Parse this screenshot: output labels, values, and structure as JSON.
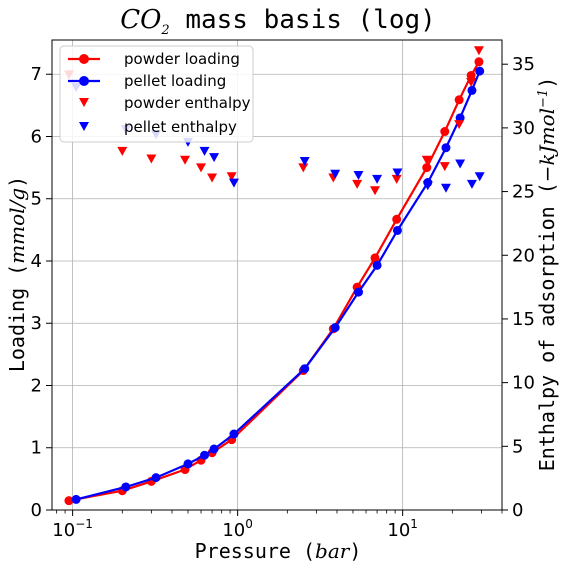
{
  "chart_data": {
    "type": "line",
    "title": "CO2 mass basis (log)",
    "title_parts": {
      "main": "CO",
      "sub": "2",
      "rest": " mass basis (log)"
    },
    "xlabel": "Pressure (bar)",
    "xlabel_parts": {
      "prefix": "Pressure (",
      "math": "bar",
      "suffix": ")"
    },
    "ylabel": "Loading (mmol/g)",
    "ylabel_parts": {
      "prefix": "Loading (",
      "math": "mmol/g",
      "suffix": ")"
    },
    "y2label": "Enthalpy of adsorption (−kJ/mol⁻¹)",
    "y2label_parts": {
      "prefix": "Enthalpy of adsorption (",
      "math": "−kJmol",
      "sup": "−1",
      "suffix": ")"
    },
    "xscale": "log",
    "xlim": [
      0.075,
      40
    ],
    "ylim": [
      0,
      7.55
    ],
    "y2lim": [
      0,
      36.9
    ],
    "grid": true,
    "legend_position": "top-left",
    "x_ticks": [
      {
        "value": 0.1,
        "base": "10",
        "exp": "−1"
      },
      {
        "value": 1,
        "base": "10",
        "exp": "0"
      },
      {
        "value": 10,
        "base": "10",
        "exp": "1"
      }
    ],
    "y_ticks": [
      0,
      1,
      2,
      3,
      4,
      5,
      6,
      7
    ],
    "y2_ticks": [
      0,
      5,
      10,
      15,
      20,
      25,
      30,
      35
    ],
    "series": [
      {
        "name": "powder loading",
        "kind": "line",
        "axis": "left",
        "color": "#ff0000",
        "x": [
          0.095,
          0.2,
          0.3,
          0.48,
          0.6,
          0.7,
          0.92,
          2.5,
          3.8,
          5.3,
          6.8,
          9.2,
          14,
          18,
          22,
          26,
          29
        ],
        "y": [
          0.15,
          0.31,
          0.46,
          0.65,
          0.8,
          0.92,
          1.13,
          2.24,
          2.91,
          3.58,
          4.05,
          4.67,
          5.5,
          6.08,
          6.59,
          6.98,
          7.2
        ]
      },
      {
        "name": "pellet loading",
        "kind": "line",
        "axis": "left",
        "color": "#0000ff",
        "x": [
          0.105,
          0.21,
          0.32,
          0.5,
          0.63,
          0.72,
          0.95,
          2.55,
          3.9,
          5.4,
          7.0,
          9.3,
          14.2,
          18.3,
          22.3,
          26.3,
          29.3
        ],
        "y": [
          0.17,
          0.37,
          0.52,
          0.74,
          0.88,
          0.98,
          1.22,
          2.27,
          2.93,
          3.5,
          3.93,
          4.49,
          5.26,
          5.82,
          6.3,
          6.74,
          7.05
        ]
      },
      {
        "name": "powder enthalpy",
        "kind": "marker",
        "axis": "right",
        "color": "#ff0000",
        "x": [
          0.095,
          0.2,
          0.3,
          0.48,
          0.6,
          0.7,
          0.92,
          2.5,
          3.8,
          5.3,
          6.8,
          9.2,
          14,
          18,
          22,
          26,
          29
        ],
        "y": [
          34.2,
          28.2,
          27.6,
          27.5,
          26.9,
          26.1,
          26.2,
          26.9,
          26.1,
          25.6,
          25.1,
          26.0,
          27.5,
          27.0,
          30.3,
          33.6,
          36.1
        ]
      },
      {
        "name": "pellet enthalpy",
        "kind": "marker",
        "axis": "right",
        "color": "#0000ff",
        "x": [
          0.105,
          0.21,
          0.32,
          0.5,
          0.63,
          0.72,
          0.95,
          2.55,
          3.9,
          5.4,
          7.0,
          9.3,
          14.2,
          18.3,
          22.3,
          26.3,
          29.3
        ],
        "y": [
          33.2,
          29.9,
          29.5,
          28.9,
          28.2,
          27.7,
          25.7,
          27.4,
          26.4,
          26.3,
          26.0,
          26.5,
          25.5,
          25.3,
          27.2,
          25.6,
          26.2
        ]
      }
    ]
  }
}
